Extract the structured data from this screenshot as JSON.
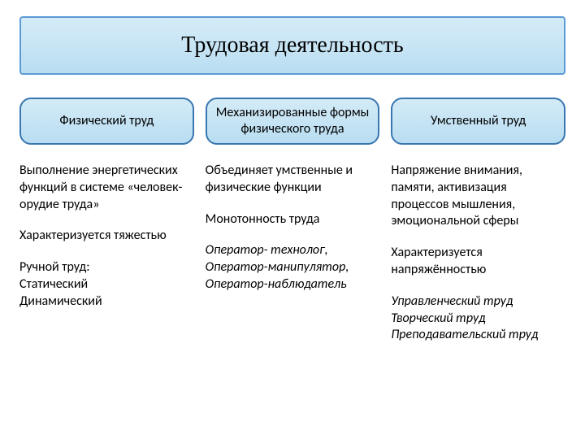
{
  "title": "Трудовая деятельность",
  "columns": [
    {
      "header": "Физический труд",
      "paragraphs": [
        {
          "text": "Выполнение энергетических функций в системе «человек-орудие труда»",
          "italic": false
        },
        {
          "text": "Характеризуется тяжестью",
          "italic": false
        },
        {
          "text": "Ручной труд:\nСтатический\nДинамический",
          "italic": false
        }
      ]
    },
    {
      "header": "Механизированные формы физического труда",
      "paragraphs": [
        {
          "text": "Объединяет умственные и физические функции",
          "italic": false
        },
        {
          "text": "Монотонность  труда",
          "italic": false
        },
        {
          "text": "Оператор- технолог,\nОператор-манипулятор,\nОператор-наблюдатель",
          "italic": true
        }
      ]
    },
    {
      "header": "Умственный труд",
      "paragraphs": [
        {
          "text": "Напряжение внимания, памяти, активизация процессов мышления, эмоциональной сферы",
          "italic": false
        },
        {
          "text": "Характеризуется напряжённостью",
          "italic": false
        },
        {
          "text": "Управленческий труд\nТворческий труд\nПреподавательский труд",
          "italic": true
        }
      ]
    }
  ],
  "style": {
    "title_bg_gradient": [
      "#d4ebf7",
      "#b8ddf1"
    ],
    "title_border": "#5b9bd5",
    "pill_border": "#3a77b0",
    "title_fontsize": 28,
    "header_fontsize": 16,
    "body_fontsize": 16,
    "background": "#ffffff"
  }
}
